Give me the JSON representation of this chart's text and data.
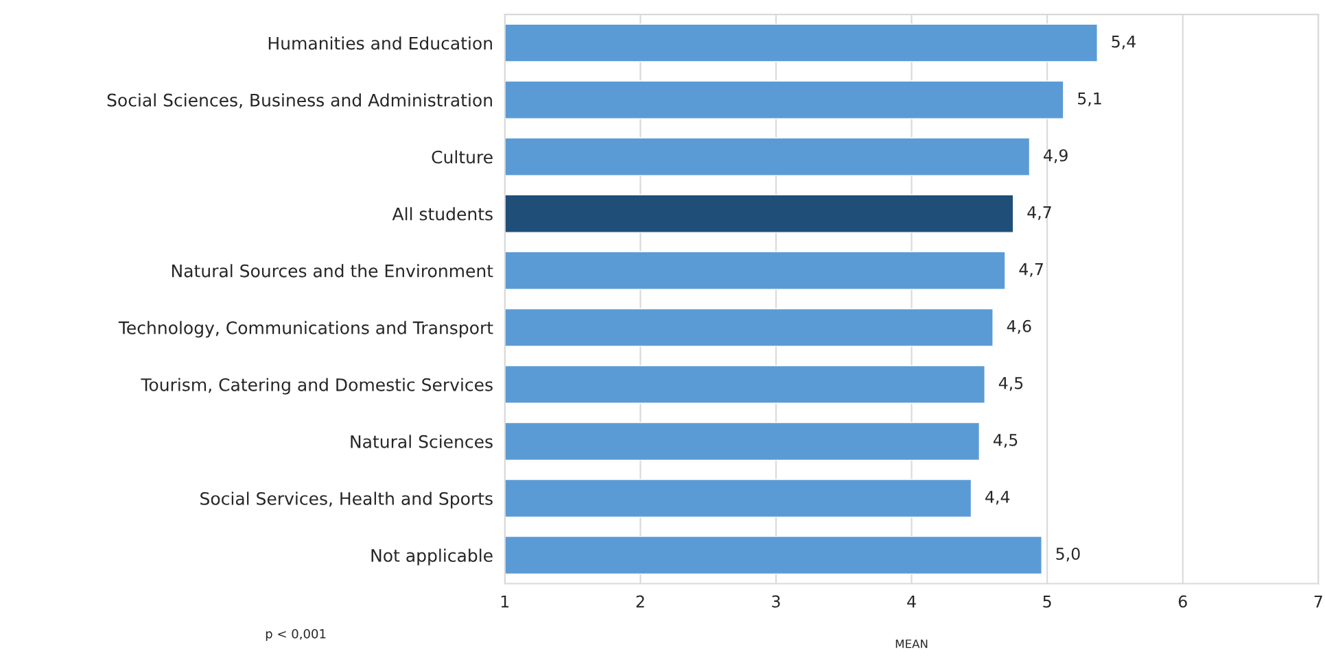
{
  "chart_data": {
    "type": "bar",
    "orientation": "horizontal",
    "categories": [
      "Humanities and Education",
      "Social Sciences, Business and Administration",
      "Culture",
      "All students",
      "Natural Sources and the Environment",
      "Technology, Communications and Transport",
      "Tourism, Catering and Domestic Services",
      "Natural Sciences",
      "Social Services, Health and Sports",
      "Not applicable"
    ],
    "values": [
      5.37,
      5.12,
      4.87,
      4.75,
      4.69,
      4.6,
      4.54,
      4.5,
      4.44,
      4.96
    ],
    "value_labels": [
      "5,4",
      "5,1",
      "4,9",
      "4,7",
      "4,7",
      "4,6",
      "4,5",
      "4,5",
      "4,4",
      "5,0"
    ],
    "colors": [
      "#5b9bd5",
      "#5b9bd5",
      "#5b9bd5",
      "#1f4e79",
      "#5b9bd5",
      "#5b9bd5",
      "#5b9bd5",
      "#5b9bd5",
      "#5b9bd5",
      "#5b9bd5"
    ],
    "xlim": [
      1,
      7
    ],
    "xticks": [
      1,
      2,
      3,
      4,
      5,
      6,
      7
    ],
    "xlabel": "MEAN",
    "grid": "x",
    "legend": false,
    "annotations": [
      "p < 0,001"
    ]
  }
}
